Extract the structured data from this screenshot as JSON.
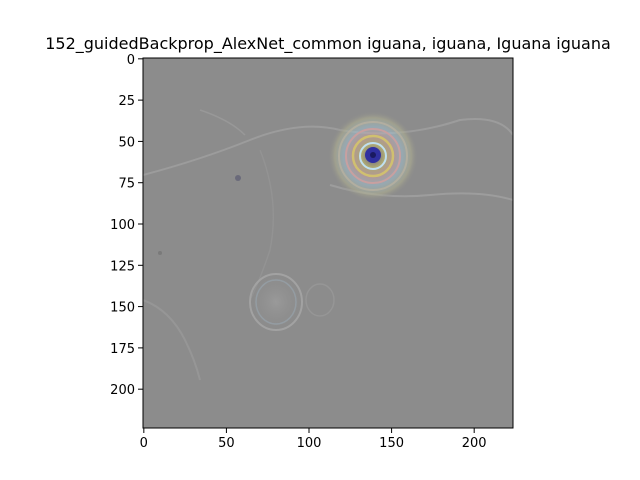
{
  "figure": {
    "title": "152_guidedBackprop_AlexNet_common iguana, iguana, Iguana iguana",
    "background_color": "#ffffff",
    "image_base_color": "#8c8c8c",
    "image_description_colors": [
      "#808080",
      "#b0b0b0",
      "#6e6e7a",
      "#3a3aa0",
      "#c0a860",
      "#b08080",
      "#70a070"
    ]
  },
  "axes": {
    "x_ticks": [
      0,
      50,
      100,
      150,
      200
    ],
    "y_ticks": [
      0,
      25,
      50,
      75,
      100,
      125,
      150,
      175,
      200
    ],
    "x_range": [
      -0.5,
      223.5
    ],
    "y_range": [
      -0.5,
      223.5
    ]
  }
}
